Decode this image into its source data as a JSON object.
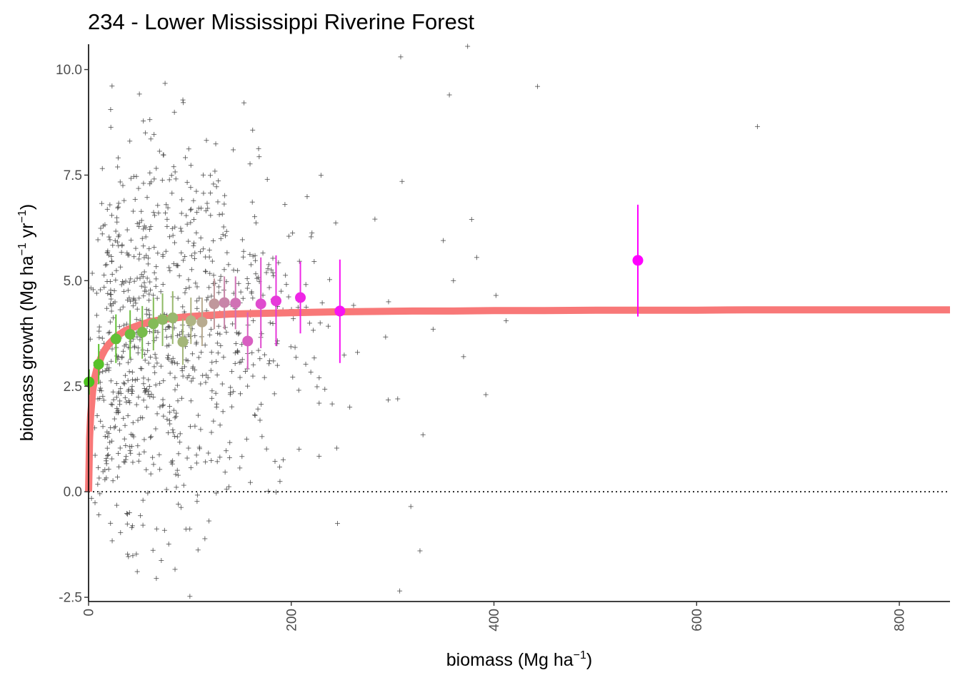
{
  "chart_data": {
    "type": "scatter",
    "title": "234 - Lower Mississippi Riverine Forest",
    "xlabel": {
      "base": "biomass (Mg ha",
      "sup": "−1",
      "close": ")"
    },
    "ylabel": {
      "base": "biomass growth (Mg ha",
      "sup1": "−1",
      "mid": " yr",
      "sup2": "−1",
      "close": ")"
    },
    "xlim": [
      0,
      850
    ],
    "ylim": [
      -2.6,
      10.6
    ],
    "x_ticks": [
      0,
      200,
      400,
      600,
      800
    ],
    "x_tick_labels": [
      "0",
      "200",
      "400",
      "600",
      "800"
    ],
    "y_ticks": [
      -2.5,
      0,
      2.5,
      5,
      7.5,
      10
    ],
    "y_tick_labels": [
      "-2.5",
      "0.0",
      "2.5",
      "5.0",
      "7.5",
      "10.0"
    ],
    "grid": false,
    "zero_reference_line": {
      "y": 0,
      "style": "dotted"
    },
    "colors": {
      "points": "#404040",
      "fit_line": "#f87878",
      "bin_gradient": [
        "#4cc21f",
        "#b4b48a",
        "#ff00ff"
      ]
    },
    "fit_curve": {
      "description_hidden": false,
      "x": [
        0,
        1,
        2,
        4,
        6,
        8,
        10,
        13,
        16,
        20,
        25,
        30,
        35,
        40,
        50,
        60,
        70,
        80,
        90,
        100,
        120,
        140,
        160,
        180,
        200,
        240,
        280,
        320,
        360,
        400,
        450,
        500,
        550,
        600,
        650,
        700,
        750,
        800,
        850
      ],
      "y": [
        0.0,
        1.25,
        1.78,
        2.38,
        2.7,
        2.9,
        3.04,
        3.22,
        3.36,
        3.5,
        3.62,
        3.72,
        3.8,
        3.86,
        3.95,
        4.02,
        4.07,
        4.1,
        4.13,
        4.15,
        4.18,
        4.21,
        4.22,
        4.23,
        4.24,
        4.26,
        4.27,
        4.28,
        4.28,
        4.29,
        4.29,
        4.3,
        4.3,
        4.3,
        4.31,
        4.31,
        4.31,
        4.31,
        4.31
      ]
    },
    "binned_means": [
      {
        "x": 0.5,
        "y": 2.6,
        "lo": 2.3,
        "hi": 2.9
      },
      {
        "x": 10,
        "y": 3.02,
        "lo": 2.55,
        "hi": 3.5
      },
      {
        "x": 27,
        "y": 3.62,
        "lo": 3.05,
        "hi": 4.2
      },
      {
        "x": 41,
        "y": 3.73,
        "lo": 3.15,
        "hi": 4.3
      },
      {
        "x": 53,
        "y": 3.78,
        "lo": 3.15,
        "hi": 4.4
      },
      {
        "x": 64,
        "y": 3.98,
        "lo": 3.35,
        "hi": 4.6
      },
      {
        "x": 73,
        "y": 4.08,
        "lo": 3.45,
        "hi": 4.7
      },
      {
        "x": 83,
        "y": 4.12,
        "lo": 3.5,
        "hi": 4.75
      },
      {
        "x": 93,
        "y": 3.55,
        "lo": 3.0,
        "hi": 4.1
      },
      {
        "x": 101,
        "y": 4.05,
        "lo": 3.5,
        "hi": 4.6
      },
      {
        "x": 112,
        "y": 4.02,
        "lo": 3.45,
        "hi": 4.6
      },
      {
        "x": 124,
        "y": 4.45,
        "lo": 3.85,
        "hi": 5.05
      },
      {
        "x": 134,
        "y": 4.48,
        "lo": 3.85,
        "hi": 5.1
      },
      {
        "x": 145,
        "y": 4.47,
        "lo": 3.85,
        "hi": 5.1
      },
      {
        "x": 157,
        "y": 3.57,
        "lo": 2.9,
        "hi": 4.25
      },
      {
        "x": 170,
        "y": 4.45,
        "lo": 3.4,
        "hi": 5.55
      },
      {
        "x": 185,
        "y": 4.52,
        "lo": 3.45,
        "hi": 5.6
      },
      {
        "x": 209,
        "y": 4.6,
        "lo": 3.75,
        "hi": 5.45
      },
      {
        "x": 248,
        "y": 4.28,
        "lo": 3.05,
        "hi": 5.5
      },
      {
        "x": 542,
        "y": 5.48,
        "lo": 4.15,
        "hi": 6.8
      }
    ],
    "outlier_points": [
      [
        660,
        8.65
      ],
      [
        443,
        9.6
      ],
      [
        374,
        10.55
      ],
      [
        392,
        2.3
      ],
      [
        412,
        4.05
      ],
      [
        402,
        4.65
      ],
      [
        383,
        5.55
      ],
      [
        378,
        6.45
      ],
      [
        356,
        9.4
      ],
      [
        308,
        10.3
      ],
      [
        330,
        1.35
      ],
      [
        318,
        -0.35
      ],
      [
        327,
        -1.4
      ],
      [
        307,
        -2.35
      ],
      [
        350,
        5.95
      ],
      [
        360,
        5.0
      ],
      [
        370,
        3.2
      ],
      [
        305,
        2.2
      ],
      [
        296,
        4.5
      ],
      [
        340,
        3.85
      ]
    ],
    "scatter_summary": {
      "n_points_dense_cloud": 900,
      "x_range": [
        0,
        330
      ],
      "y_range": [
        -2.5,
        10.6
      ]
    }
  }
}
